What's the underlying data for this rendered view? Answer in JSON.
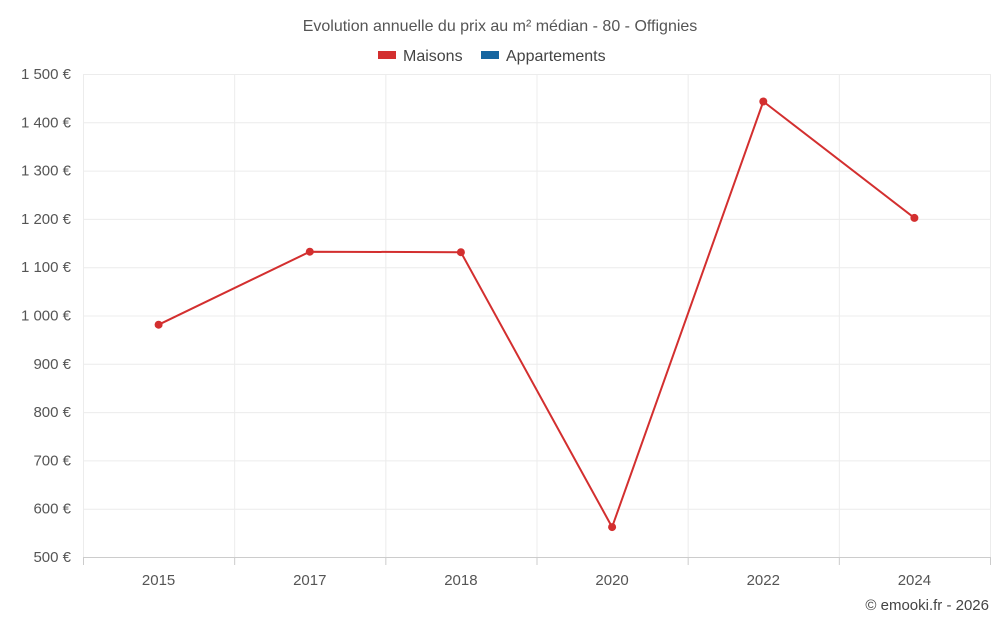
{
  "chart_data": {
    "type": "line",
    "title": "Evolution annuelle du prix au m² médian - 80 - Offignies",
    "categories": [
      "2015",
      "2017",
      "2018",
      "2020",
      "2022",
      "2024"
    ],
    "series": [
      {
        "name": "Maisons",
        "color": "#d32f2f",
        "values": [
          981,
          1132,
          1131,
          562,
          1443,
          1202
        ]
      },
      {
        "name": "Appartements",
        "color": "#1565a0",
        "values": [
          null,
          null,
          null,
          null,
          null,
          null
        ]
      }
    ],
    "ylim": [
      500,
      1500
    ],
    "yticks": [
      500,
      600,
      700,
      800,
      900,
      1000,
      1100,
      1200,
      1300,
      1400,
      1500
    ],
    "ytick_labels": [
      "500 €",
      "600 €",
      "700 €",
      "800 €",
      "900 €",
      "1 000 €",
      "1 100 €",
      "1 200 €",
      "1 300 €",
      "1 400 €",
      "1 500 €"
    ],
    "grid": true,
    "legend_position": "top-center"
  },
  "credit": "© emooki.fr - 2026"
}
